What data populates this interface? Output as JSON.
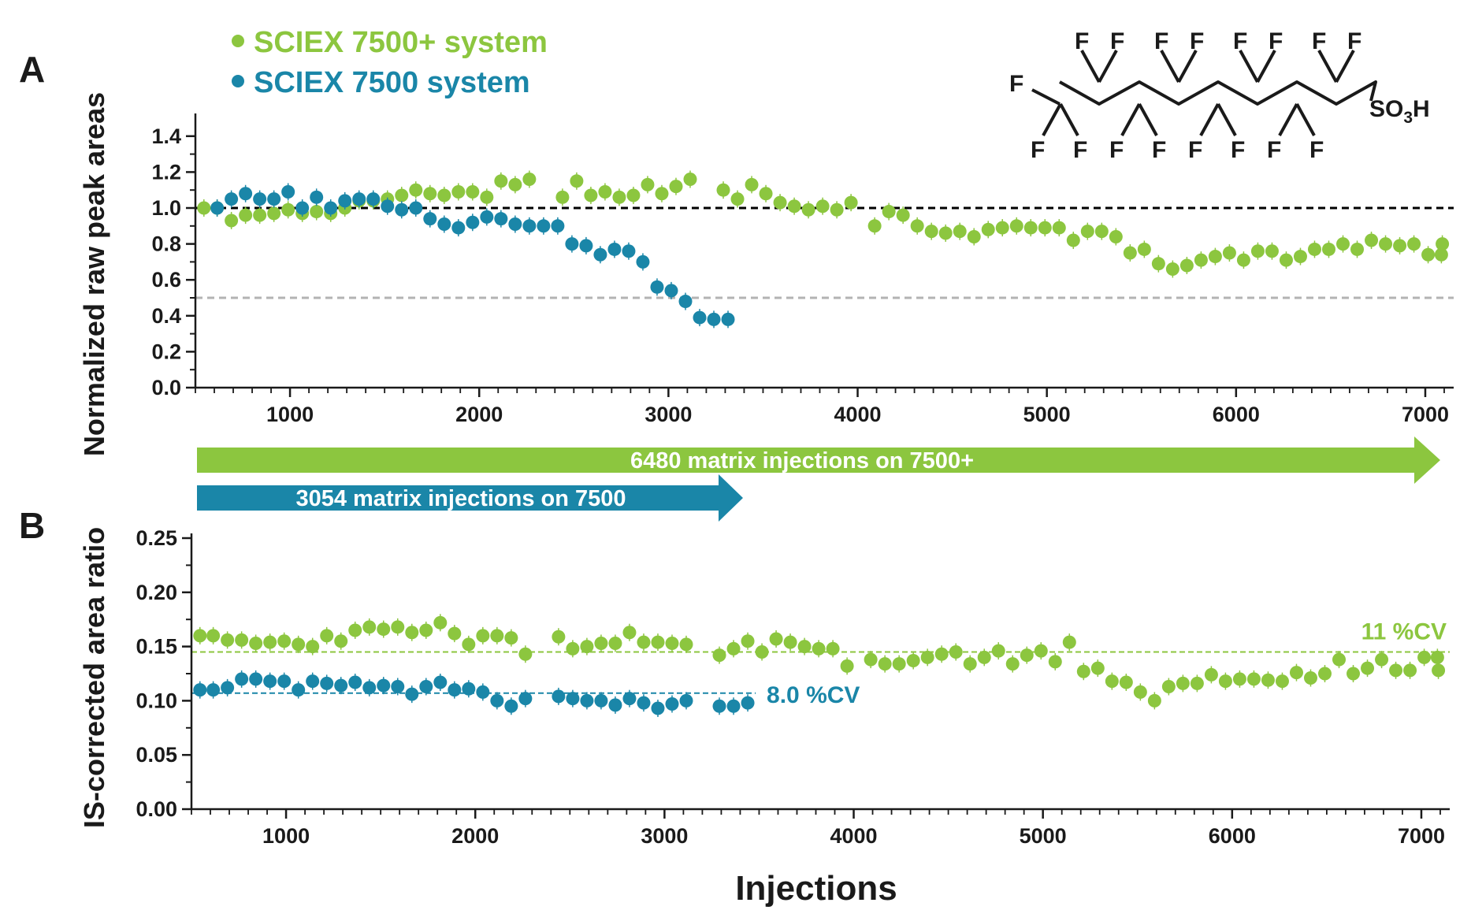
{
  "figure": {
    "panel_a_letter": "A",
    "panel_b_letter": "B",
    "legend": [
      {
        "label": "SCIEX 7500+ system",
        "color": "#8cc63f",
        "marker": "circle"
      },
      {
        "label": "SCIEX 7500 system",
        "color": "#1a86a8",
        "marker": "circle"
      }
    ],
    "arrows": [
      {
        "label": "6480 matrix injections on 7500+",
        "color": "#8cc63f"
      },
      {
        "label": "3054 matrix injections on 7500",
        "color": "#1a86a8"
      }
    ],
    "structure": {
      "fluorine_label": "F",
      "sulfonic_prefix": "SO",
      "sulfonic_subscript": "3",
      "sulfonic_suffix": "H"
    },
    "xlabel": "Injections",
    "colors": {
      "green": "#8cc63f",
      "blue": "#1a86a8",
      "axis": "#1a1a1a",
      "ref_black": "#000000",
      "ref_gray": "#b3b3b3"
    }
  },
  "chart_data": [
    {
      "type": "scatter",
      "panel": "A",
      "ylabel": "Normalized raw peak areas",
      "xlim": [
        500,
        7150
      ],
      "ylim": [
        0,
        1.5
      ],
      "xticks": [
        1000,
        2000,
        3000,
        4000,
        5000,
        6000,
        7000
      ],
      "yticks": [
        0.0,
        0.2,
        0.4,
        0.6,
        0.8,
        1.0,
        1.2,
        1.4
      ],
      "ytick_labels": [
        "0.0",
        "0.2",
        "0.4",
        "0.6",
        "0.8",
        "1.0",
        "1.2",
        "1.4"
      ],
      "reference_lines": [
        {
          "y": 1.0,
          "style": "dashed",
          "color": "#000000"
        },
        {
          "y": 0.5,
          "style": "dashed",
          "color": "#b3b3b3"
        }
      ],
      "series": [
        {
          "name": "SCIEX 7500+ system",
          "color": "#8cc63f",
          "x": [
            545,
            615,
            690,
            765,
            840,
            915,
            990,
            1065,
            1140,
            1215,
            1290,
            1365,
            1440,
            1515,
            1590,
            1665,
            1740,
            1815,
            1890,
            1965,
            2040,
            2115,
            2190,
            2265,
            2440,
            2515,
            2590,
            2665,
            2740,
            2815,
            2890,
            2965,
            3040,
            3115,
            3290,
            3365,
            3440,
            3515,
            3590,
            3665,
            3740,
            3815,
            3890,
            3965,
            4090,
            4165,
            4240,
            4315,
            4390,
            4465,
            4540,
            4615,
            4690,
            4765,
            4840,
            4915,
            4990,
            5065,
            5140,
            5215,
            5290,
            5365,
            5440,
            5515,
            5590,
            5665,
            5740,
            5815,
            5890,
            5965,
            6040,
            6115,
            6190,
            6265,
            6340,
            6415,
            6490,
            6565,
            6640,
            6715,
            6790,
            6865,
            6940,
            7015,
            7085,
            7090
          ],
          "y": [
            1.0,
            1.0,
            0.93,
            0.96,
            0.96,
            0.97,
            0.99,
            0.97,
            0.98,
            0.97,
            1.0,
            1.04,
            1.04,
            1.05,
            1.07,
            1.1,
            1.08,
            1.07,
            1.09,
            1.09,
            1.06,
            1.15,
            1.13,
            1.16,
            1.06,
            1.15,
            1.07,
            1.09,
            1.06,
            1.07,
            1.13,
            1.08,
            1.12,
            1.16,
            1.1,
            1.05,
            1.13,
            1.08,
            1.03,
            1.01,
            0.99,
            1.01,
            0.99,
            1.03,
            0.9,
            0.98,
            0.96,
            0.9,
            0.87,
            0.86,
            0.87,
            0.84,
            0.88,
            0.89,
            0.9,
            0.89,
            0.89,
            0.89,
            0.82,
            0.87,
            0.87,
            0.84,
            0.75,
            0.77,
            0.69,
            0.66,
            0.68,
            0.71,
            0.73,
            0.75,
            0.71,
            0.76,
            0.76,
            0.71,
            0.73,
            0.77,
            0.77,
            0.8,
            0.77,
            0.82,
            0.8,
            0.79,
            0.8,
            0.74,
            0.74,
            0.8
          ]
        },
        {
          "name": "SCIEX 7500 system",
          "color": "#1a86a8",
          "x": [
            615,
            690,
            765,
            840,
            915,
            990,
            1065,
            1140,
            1215,
            1290,
            1365,
            1440,
            1515,
            1590,
            1665,
            1740,
            1815,
            1890,
            1965,
            2040,
            2115,
            2190,
            2265,
            2340,
            2415,
            2490,
            2565,
            2640,
            2715,
            2790,
            2865,
            2940,
            3015,
            3090,
            3165,
            3240,
            3315
          ],
          "y": [
            1.0,
            1.05,
            1.08,
            1.05,
            1.05,
            1.09,
            1.0,
            1.06,
            1.0,
            1.04,
            1.05,
            1.05,
            1.01,
            0.99,
            1.0,
            0.94,
            0.91,
            0.89,
            0.92,
            0.95,
            0.94,
            0.91,
            0.9,
            0.9,
            0.9,
            0.8,
            0.79,
            0.74,
            0.77,
            0.76,
            0.7,
            0.56,
            0.54,
            0.48,
            0.39,
            0.38,
            0.38
          ]
        }
      ]
    },
    {
      "type": "scatter",
      "panel": "B",
      "ylabel": "IS-corrected area ratio",
      "xlabel": "Injections",
      "xlim": [
        500,
        7150
      ],
      "ylim": [
        0,
        0.25
      ],
      "xticks": [
        1000,
        2000,
        3000,
        4000,
        5000,
        6000,
        7000
      ],
      "yticks": [
        0.0,
        0.05,
        0.1,
        0.15,
        0.2,
        0.25
      ],
      "ytick_labels": [
        "0.00",
        "0.05",
        "0.10",
        "0.15",
        "0.20",
        "0.25"
      ],
      "series": [
        {
          "name": "SCIEX 7500+ system",
          "color": "#8cc63f",
          "mean_line": 0.145,
          "cv_label": "11 %CV",
          "x": [
            545,
            615,
            690,
            765,
            840,
            915,
            990,
            1065,
            1140,
            1215,
            1290,
            1365,
            1440,
            1515,
            1590,
            1665,
            1740,
            1815,
            1890,
            1965,
            2040,
            2115,
            2190,
            2265,
            2440,
            2515,
            2590,
            2665,
            2740,
            2815,
            2890,
            2965,
            3040,
            3115,
            3290,
            3365,
            3440,
            3515,
            3590,
            3665,
            3740,
            3815,
            3890,
            3965,
            4090,
            4165,
            4240,
            4315,
            4390,
            4465,
            4540,
            4615,
            4690,
            4765,
            4840,
            4915,
            4990,
            5065,
            5140,
            5215,
            5290,
            5365,
            5440,
            5515,
            5590,
            5665,
            5740,
            5815,
            5890,
            5965,
            6040,
            6115,
            6190,
            6265,
            6340,
            6415,
            6490,
            6565,
            6640,
            6715,
            6790,
            6865,
            6940,
            7015,
            7085,
            7090
          ],
          "y": [
            0.16,
            0.16,
            0.156,
            0.156,
            0.153,
            0.154,
            0.155,
            0.152,
            0.15,
            0.16,
            0.155,
            0.165,
            0.168,
            0.166,
            0.168,
            0.163,
            0.165,
            0.172,
            0.162,
            0.152,
            0.16,
            0.16,
            0.158,
            0.143,
            0.159,
            0.148,
            0.15,
            0.153,
            0.153,
            0.163,
            0.154,
            0.154,
            0.153,
            0.152,
            0.142,
            0.148,
            0.155,
            0.145,
            0.157,
            0.154,
            0.15,
            0.148,
            0.148,
            0.132,
            0.138,
            0.134,
            0.134,
            0.137,
            0.14,
            0.143,
            0.145,
            0.134,
            0.14,
            0.146,
            0.134,
            0.142,
            0.146,
            0.136,
            0.154,
            0.127,
            0.13,
            0.118,
            0.117,
            0.108,
            0.1,
            0.113,
            0.116,
            0.116,
            0.124,
            0.118,
            0.12,
            0.12,
            0.119,
            0.118,
            0.126,
            0.121,
            0.125,
            0.138,
            0.125,
            0.13,
            0.138,
            0.128,
            0.128,
            0.14,
            0.14,
            0.128
          ]
        },
        {
          "name": "SCIEX 7500 system",
          "color": "#1a86a8",
          "mean_line": 0.107,
          "cv_label": "8.0 %CV",
          "x": [
            545,
            615,
            690,
            765,
            840,
            915,
            990,
            1065,
            1140,
            1215,
            1290,
            1365,
            1440,
            1515,
            1590,
            1665,
            1740,
            1815,
            1890,
            1965,
            2040,
            2115,
            2190,
            2265,
            2440,
            2515,
            2590,
            2665,
            2740,
            2815,
            2890,
            2965,
            3040,
            3115,
            3290,
            3365,
            3440
          ],
          "y": [
            0.11,
            0.11,
            0.112,
            0.12,
            0.12,
            0.118,
            0.118,
            0.11,
            0.118,
            0.116,
            0.114,
            0.117,
            0.112,
            0.114,
            0.113,
            0.106,
            0.113,
            0.117,
            0.11,
            0.111,
            0.108,
            0.1,
            0.095,
            0.102,
            0.104,
            0.102,
            0.1,
            0.1,
            0.096,
            0.102,
            0.098,
            0.093,
            0.097,
            0.1,
            0.095,
            0.095,
            0.098
          ]
        }
      ]
    }
  ]
}
